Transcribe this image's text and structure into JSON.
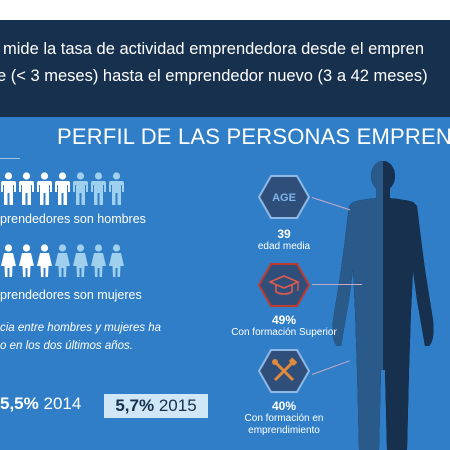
{
  "intro": {
    "line1": "mide la tasa de actividad emprendedora desde el empren",
    "line2": "e (< 3 meses) hasta el emprendedor nuevo (3 a 42 meses)"
  },
  "section_title": "PERFIL DE LAS PERSONAS EMPREND",
  "pictograms": {
    "men_row": {
      "caption": "prendedores son hombres",
      "highlighted_count": 4,
      "total_count": 7
    },
    "women_row": {
      "caption": "prendedores son mujeres",
      "highlighted_count": 3,
      "total_count": 7
    }
  },
  "note": {
    "line1": "cia entre hombres y mujeres ha",
    "line2": "o en los dos últimos años."
  },
  "stats": {
    "value_2014": "5,5%",
    "year_2014": "2014",
    "value_2015": "5,7%",
    "year_2015": "2015"
  },
  "profile": {
    "age": {
      "icon_text": "AGE",
      "value": "39",
      "label": "edad media"
    },
    "education": {
      "value": "49%",
      "label": "Con formación Superior"
    },
    "training": {
      "value": "40%",
      "label_line1": "Con formación en",
      "label_line2": "emprendimiento"
    }
  },
  "colors": {
    "navy": "#16304d",
    "blue": "#2f7ec7",
    "highlight_person": "#ffffff",
    "dim_person": "#9fd0ee",
    "silhouette_dark": "#16304d",
    "silhouette_light": "#2a5a8a",
    "hex_fill": "#2f4f7a",
    "hex_stroke": "#8fb9e6"
  },
  "icons": [
    "male-person-icon",
    "female-person-icon",
    "age-hexagon-icon",
    "graduation-cap-icon",
    "tools-icon",
    "human-silhouette-icon"
  ]
}
